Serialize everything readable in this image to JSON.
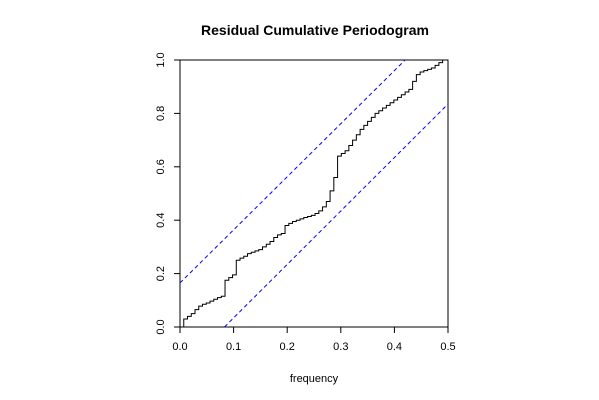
{
  "chart_data": {
    "type": "line",
    "title": "Residual Cumulative Periodogram",
    "xlabel": "frequency",
    "ylabel": "",
    "xlim": [
      0,
      0.5
    ],
    "ylim": [
      0,
      1
    ],
    "x_ticks": [
      0.0,
      0.1,
      0.2,
      0.3,
      0.4,
      0.5
    ],
    "x_tick_labels": [
      "0.0",
      "0.1",
      "0.2",
      "0.3",
      "0.4",
      "0.5"
    ],
    "y_ticks": [
      0.0,
      0.2,
      0.4,
      0.6,
      0.8,
      1.0
    ],
    "y_tick_labels": [
      "0.0",
      "0.2",
      "0.4",
      "0.6",
      "0.8",
      "1.0"
    ],
    "grid": false,
    "series": [
      {
        "style": "step",
        "color": "#000000",
        "x": [
          0.0,
          0.007,
          0.014,
          0.021,
          0.028,
          0.035,
          0.042,
          0.049,
          0.056,
          0.063,
          0.07,
          0.077,
          0.084,
          0.091,
          0.098,
          0.105,
          0.112,
          0.119,
          0.126,
          0.133,
          0.14,
          0.147,
          0.154,
          0.161,
          0.168,
          0.175,
          0.182,
          0.189,
          0.196,
          0.203,
          0.21,
          0.217,
          0.224,
          0.231,
          0.238,
          0.245,
          0.252,
          0.259,
          0.266,
          0.273,
          0.28,
          0.287,
          0.294,
          0.301,
          0.308,
          0.315,
          0.322,
          0.329,
          0.336,
          0.343,
          0.35,
          0.357,
          0.364,
          0.371,
          0.378,
          0.385,
          0.392,
          0.399,
          0.406,
          0.413,
          0.42,
          0.427,
          0.434,
          0.441,
          0.448,
          0.455,
          0.462,
          0.469,
          0.476,
          0.483,
          0.49,
          0.497,
          0.5
        ],
        "y": [
          0.0,
          0.03,
          0.04,
          0.05,
          0.065,
          0.078,
          0.085,
          0.09,
          0.097,
          0.104,
          0.11,
          0.115,
          0.175,
          0.185,
          0.195,
          0.25,
          0.258,
          0.265,
          0.275,
          0.28,
          0.285,
          0.29,
          0.3,
          0.31,
          0.32,
          0.335,
          0.345,
          0.35,
          0.38,
          0.388,
          0.395,
          0.4,
          0.405,
          0.41,
          0.414,
          0.418,
          0.425,
          0.435,
          0.45,
          0.47,
          0.51,
          0.56,
          0.64,
          0.65,
          0.66,
          0.68,
          0.7,
          0.72,
          0.74,
          0.755,
          0.77,
          0.785,
          0.8,
          0.81,
          0.82,
          0.83,
          0.84,
          0.85,
          0.86,
          0.87,
          0.88,
          0.89,
          0.92,
          0.945,
          0.955,
          0.96,
          0.965,
          0.97,
          0.98,
          0.99,
          1.0,
          1.0,
          1.0
        ]
      },
      {
        "style": "dashed",
        "color": "#0000ff",
        "x": [
          0.0,
          0.42
        ],
        "y": [
          0.165,
          1.0
        ]
      },
      {
        "style": "dashed",
        "color": "#0000ff",
        "x": [
          0.083,
          0.5
        ],
        "y": [
          0.0,
          0.835
        ]
      }
    ]
  }
}
